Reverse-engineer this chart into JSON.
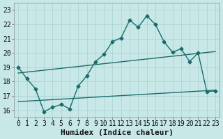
{
  "xlabel": "Humidex (Indice chaleur)",
  "background_color": "#c8e8e8",
  "line_color": "#1a6b6b",
  "xlim": [
    -0.5,
    23.5
  ],
  "ylim": [
    15.5,
    23.5
  ],
  "yticks": [
    16,
    17,
    18,
    19,
    20,
    21,
    22,
    23
  ],
  "xticks": [
    0,
    1,
    2,
    3,
    4,
    5,
    6,
    7,
    8,
    9,
    10,
    11,
    12,
    13,
    14,
    15,
    16,
    17,
    18,
    19,
    20,
    21,
    22,
    23
  ],
  "main_curve_x": [
    0,
    1,
    2,
    3,
    4,
    5,
    6,
    7,
    8,
    9,
    10,
    11,
    12,
    13,
    14,
    15,
    16,
    17,
    18,
    19,
    20,
    21,
    22,
    23
  ],
  "main_curve_y": [
    19.0,
    18.2,
    17.5,
    15.9,
    16.2,
    16.4,
    16.1,
    17.7,
    18.4,
    19.4,
    19.9,
    20.8,
    21.05,
    22.3,
    21.8,
    22.6,
    22.0,
    20.8,
    20.05,
    20.3,
    19.4,
    20.0,
    17.3,
    17.35
  ],
  "upper_line_x": [
    0,
    23
  ],
  "upper_line_y": [
    18.6,
    20.1
  ],
  "lower_line_x": [
    0,
    23
  ],
  "lower_line_y": [
    16.6,
    17.4
  ],
  "grid_color": "#a8d0d0",
  "tick_fontsize": 7,
  "label_fontsize": 8
}
